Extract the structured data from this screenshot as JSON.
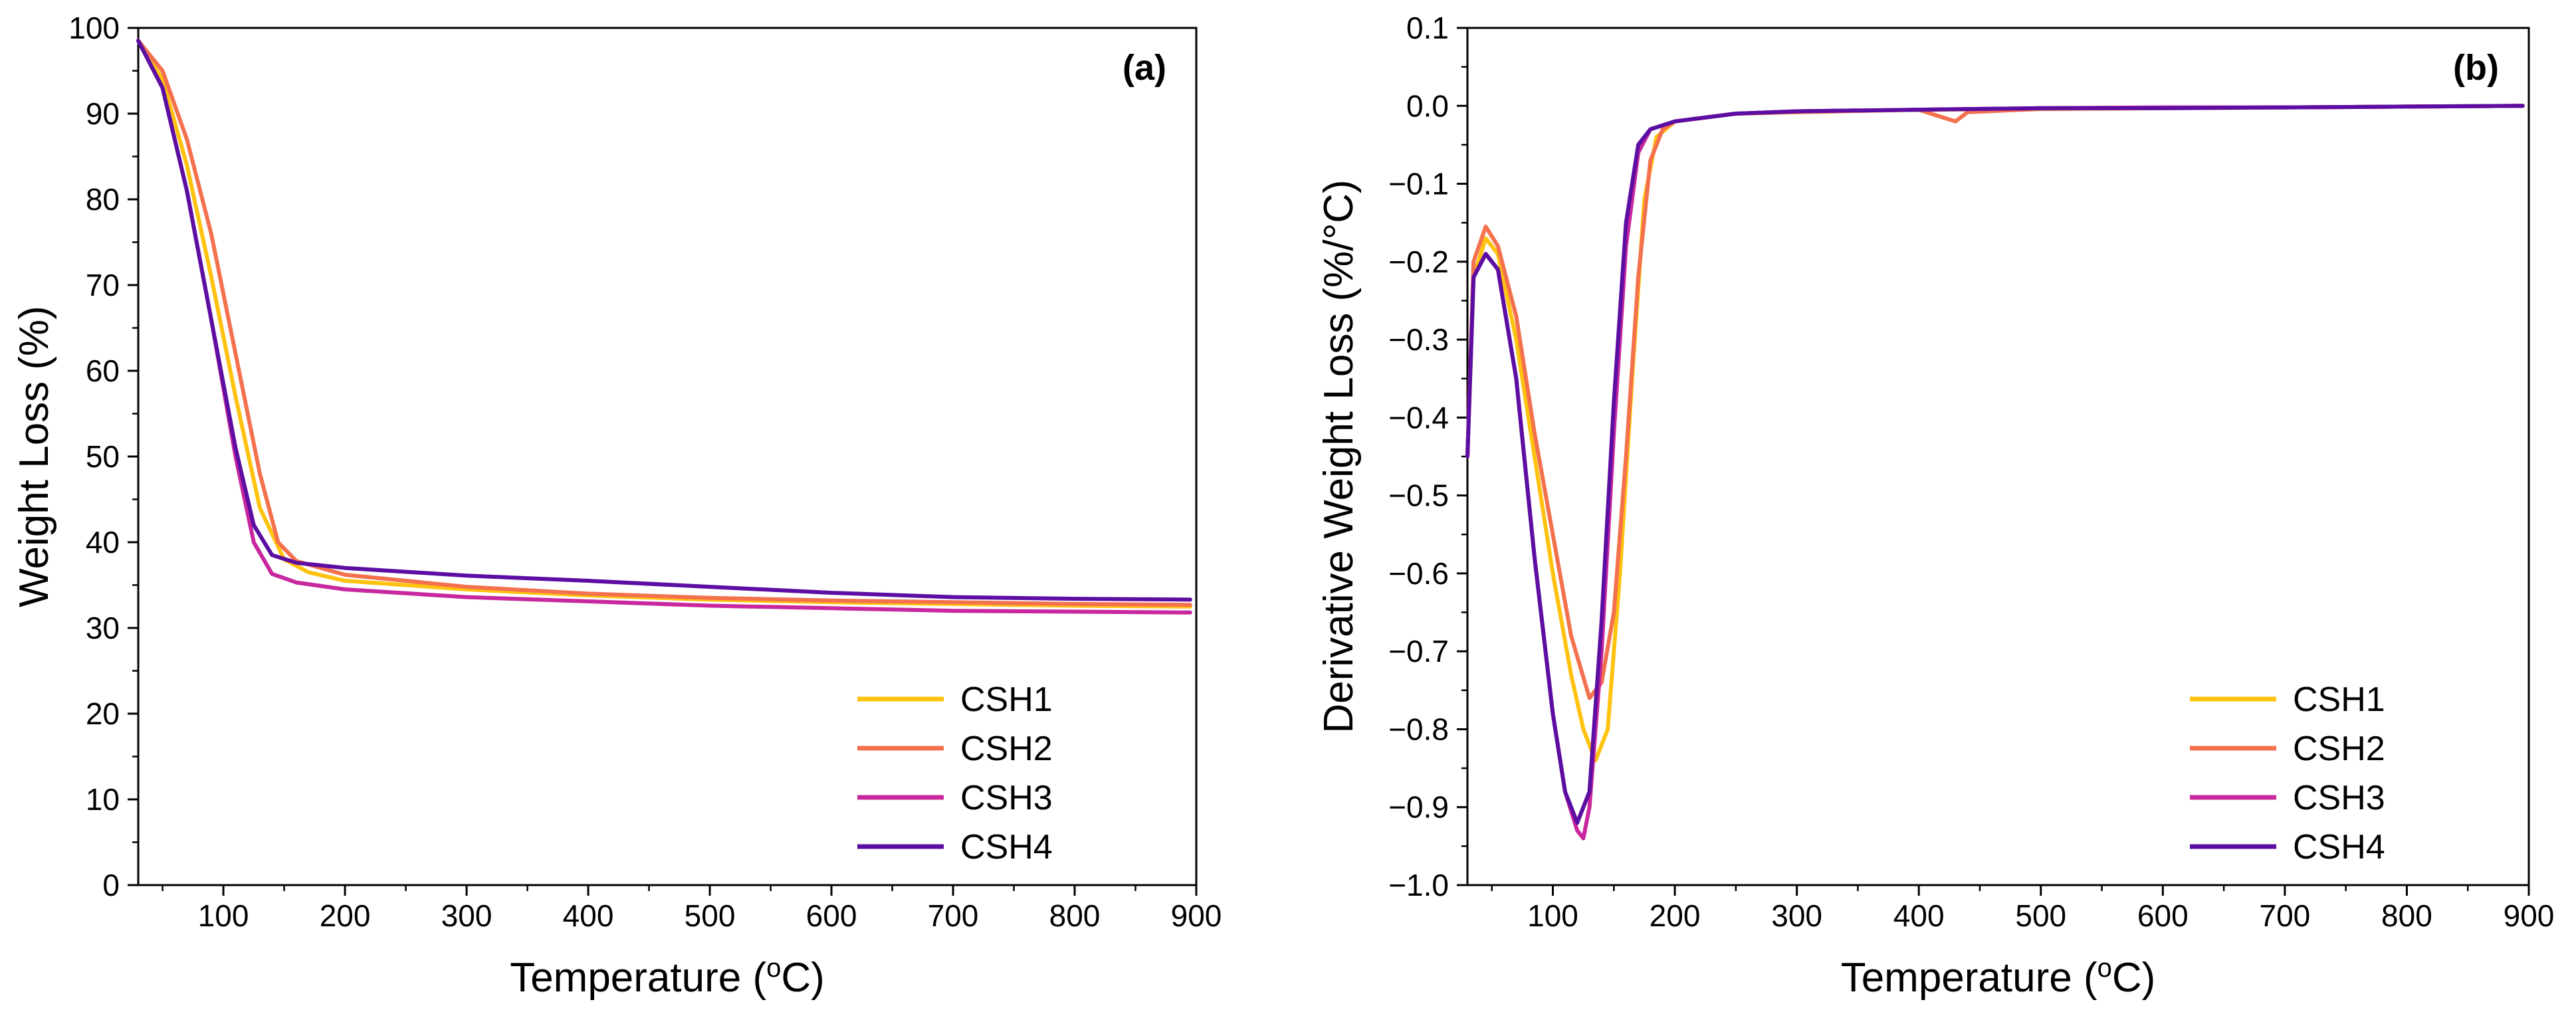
{
  "chart_data": [
    {
      "type": "line",
      "panel_label": "(a)",
      "xlabel_main": "Temperature (",
      "xlabel_sup": "o",
      "xlabel_end": "C)",
      "ylabel": "Weight Loss (%)",
      "xlim": [
        30,
        900
      ],
      "ylim": [
        0,
        100
      ],
      "xticks": [
        100,
        200,
        300,
        400,
        500,
        600,
        700,
        800,
        900
      ],
      "yticks": [
        0,
        10,
        20,
        30,
        40,
        50,
        60,
        70,
        80,
        90,
        100
      ],
      "legend_position": "bottom-right",
      "series": [
        {
          "name": "CSH1",
          "color": "#FFC20E",
          "x": [
            30,
            50,
            70,
            90,
            110,
            130,
            150,
            170,
            200,
            300,
            400,
            500,
            600,
            700,
            800,
            895
          ],
          "y": [
            98.5,
            94,
            84,
            71,
            57,
            44,
            38,
            36.5,
            35.5,
            34.5,
            33.8,
            33.3,
            33,
            32.8,
            32.6,
            32.5
          ]
        },
        {
          "name": "CSH2",
          "color": "#F4714E",
          "x": [
            30,
            50,
            70,
            90,
            110,
            130,
            145,
            160,
            200,
            300,
            400,
            500,
            600,
            700,
            800,
            895
          ],
          "y": [
            98.5,
            95,
            87,
            76,
            62,
            48,
            40,
            37.8,
            36.2,
            34.8,
            34,
            33.5,
            33.2,
            33,
            32.8,
            32.7
          ]
        },
        {
          "name": "CSH3",
          "color": "#C8279E",
          "x": [
            30,
            50,
            70,
            90,
            110,
            125,
            140,
            160,
            200,
            300,
            400,
            500,
            600,
            700,
            800,
            895
          ],
          "y": [
            98.5,
            93,
            81,
            66,
            50,
            40,
            36.3,
            35.3,
            34.5,
            33.6,
            33.1,
            32.6,
            32.3,
            32,
            31.9,
            31.8
          ]
        },
        {
          "name": "CSH4",
          "color": "#5C0EA3",
          "x": [
            30,
            50,
            70,
            90,
            110,
            125,
            140,
            160,
            200,
            300,
            400,
            500,
            600,
            700,
            800,
            895
          ],
          "y": [
            98.5,
            93,
            81,
            66,
            51,
            42,
            38.5,
            37.6,
            37,
            36.1,
            35.5,
            34.8,
            34.1,
            33.6,
            33.4,
            33.3
          ]
        }
      ]
    },
    {
      "type": "line",
      "panel_label": "(b)",
      "xlabel_main": "Temperature (",
      "xlabel_sup": "o",
      "xlabel_end": "C)",
      "ylabel": "Derivative Weight Loss (%/°C)",
      "xlim": [
        30,
        900
      ],
      "ylim": [
        -1.0,
        0.1
      ],
      "xticks": [
        100,
        200,
        300,
        400,
        500,
        600,
        700,
        800,
        900
      ],
      "yticks": [
        -1.0,
        -0.9,
        -0.8,
        -0.7,
        -0.6,
        -0.5,
        -0.4,
        -0.3,
        -0.2,
        -0.1,
        0.0,
        0.1
      ],
      "ytick_labels": [
        "−1.0",
        "−0.9",
        "−0.8",
        "−0.7",
        "−0.6",
        "−0.5",
        "−0.4",
        "−0.3",
        "−0.2",
        "−0.1",
        "0.0",
        "0.1"
      ],
      "legend_position": "bottom-right",
      "series": [
        {
          "name": "CSH1",
          "color": "#FFC20E",
          "x": [
            30,
            35,
            45,
            55,
            70,
            85,
            100,
            115,
            125,
            135,
            145,
            155,
            165,
            175,
            185,
            200,
            250,
            300,
            400,
            500,
            600,
            700,
            800,
            895
          ],
          "y": [
            -0.45,
            -0.22,
            -0.17,
            -0.19,
            -0.3,
            -0.45,
            -0.6,
            -0.73,
            -0.8,
            -0.84,
            -0.8,
            -0.6,
            -0.35,
            -0.12,
            -0.04,
            -0.02,
            -0.01,
            -0.008,
            -0.005,
            -0.004,
            -0.003,
            -0.002,
            -0.001,
            0.0
          ]
        },
        {
          "name": "CSH2",
          "color": "#F4714E",
          "x": [
            30,
            35,
            45,
            55,
            70,
            85,
            100,
            115,
            130,
            140,
            150,
            160,
            170,
            180,
            190,
            200,
            250,
            300,
            400,
            420,
            430,
            440,
            500,
            600,
            700,
            800,
            895
          ],
          "y": [
            -0.45,
            -0.2,
            -0.155,
            -0.18,
            -0.27,
            -0.42,
            -0.55,
            -0.68,
            -0.76,
            -0.74,
            -0.65,
            -0.45,
            -0.22,
            -0.07,
            -0.03,
            -0.02,
            -0.01,
            -0.008,
            -0.005,
            -0.015,
            -0.02,
            -0.008,
            -0.004,
            -0.003,
            -0.002,
            -0.001,
            0.0
          ]
        },
        {
          "name": "CSH3",
          "color": "#C8279E",
          "x": [
            30,
            35,
            45,
            55,
            70,
            85,
            100,
            110,
            120,
            125,
            130,
            140,
            150,
            160,
            170,
            180,
            200,
            250,
            300,
            400,
            500,
            600,
            700,
            800,
            895
          ],
          "y": [
            -0.45,
            -0.22,
            -0.19,
            -0.21,
            -0.35,
            -0.58,
            -0.78,
            -0.88,
            -0.93,
            -0.94,
            -0.9,
            -0.7,
            -0.42,
            -0.18,
            -0.06,
            -0.03,
            -0.02,
            -0.01,
            -0.007,
            -0.005,
            -0.003,
            -0.002,
            -0.002,
            -0.001,
            0.0
          ]
        },
        {
          "name": "CSH4",
          "color": "#5C0EA3",
          "x": [
            30,
            35,
            45,
            55,
            70,
            85,
            100,
            110,
            120,
            130,
            140,
            150,
            160,
            170,
            180,
            200,
            250,
            300,
            400,
            500,
            600,
            700,
            800,
            895
          ],
          "y": [
            -0.45,
            -0.22,
            -0.19,
            -0.21,
            -0.35,
            -0.58,
            -0.78,
            -0.88,
            -0.92,
            -0.88,
            -0.66,
            -0.38,
            -0.15,
            -0.05,
            -0.03,
            -0.02,
            -0.01,
            -0.007,
            -0.005,
            -0.003,
            -0.003,
            -0.002,
            -0.001,
            0.0
          ]
        }
      ]
    }
  ]
}
